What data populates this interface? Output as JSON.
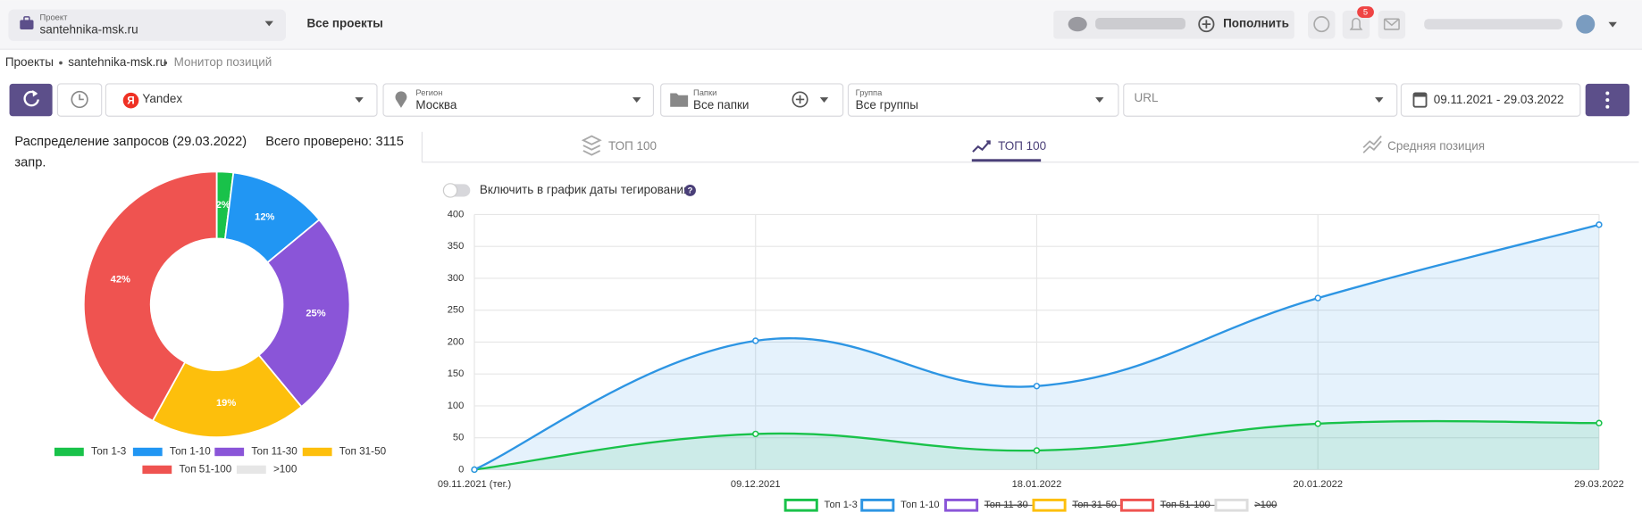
{
  "header": {
    "project_label": "Проект",
    "project": "santehnika-msk.ru",
    "all_projects": "Все проекты",
    "top_up": "Пополнить",
    "notifications": 5
  },
  "breadcrumbs": [
    "Проекты",
    "santehnika-msk.ru",
    "Монитор позиций"
  ],
  "filters": {
    "engine": "Yandex",
    "region_label": "Регион",
    "region": "Москва",
    "folders_label": "Папки",
    "folders": "Все папки",
    "group_label": "Группа",
    "group": "Все группы",
    "url": "URL",
    "dates": "09.11.2021 - 29.03.2022"
  },
  "tabs": [
    "ТОП 100",
    "ТОП 100",
    "Средняя позиция"
  ],
  "toggle_label": "Включить в график даты тегирования",
  "chart_data": [
    {
      "type": "pie",
      "donut": true,
      "title": "Распределение запросов (29.03.2022)",
      "subtitle": "Всего проверено: 3115 запр.",
      "categories": [
        "Топ 1-3",
        "Топ 1-10",
        "Топ 11-30",
        "Топ 31-50",
        "Топ 51-100",
        ">100"
      ],
      "values": [
        2,
        12,
        25,
        19,
        42,
        0
      ],
      "value_labels": [
        "2%",
        "12%",
        "25%",
        "19%",
        "42%",
        null
      ],
      "colors": [
        "#19c24a",
        "#2196f3",
        "#8a55d8",
        "#fdbf0c",
        "#ef5350",
        "#e6e6e6"
      ],
      "legend": "bottom"
    },
    {
      "type": "line",
      "categories": [
        "09.11.2021 (тег.)",
        "09.12.2021",
        "18.01.2022",
        "20.01.2022",
        "29.03.2022"
      ],
      "series": [
        {
          "name": "Топ 1-3",
          "color": "#19c24a",
          "values": [
            0,
            56,
            30,
            72,
            73
          ]
        },
        {
          "name": "Топ 1-10",
          "color": "#2d95e3",
          "values": [
            0,
            202,
            131,
            269,
            384
          ]
        },
        {
          "name": "Топ 11-30",
          "color": "#8a55d8",
          "hidden": true,
          "values": [
            null,
            null,
            null,
            null,
            null
          ]
        },
        {
          "name": "Топ 31-50",
          "color": "#fdbf0c",
          "hidden": true,
          "values": [
            null,
            null,
            null,
            null,
            null
          ]
        },
        {
          "name": "Топ 51-100",
          "color": "#ef5350",
          "hidden": true,
          "values": [
            null,
            null,
            null,
            null,
            null
          ]
        },
        {
          "name": ">100",
          "color": "#dddddd",
          "hidden": true,
          "values": [
            null,
            null,
            null,
            null,
            null
          ]
        }
      ],
      "ylim": [
        0,
        400
      ],
      "yticks": [
        0,
        50,
        100,
        150,
        200,
        250,
        300,
        350,
        400
      ],
      "grid": true,
      "legend": "bottom"
    }
  ]
}
